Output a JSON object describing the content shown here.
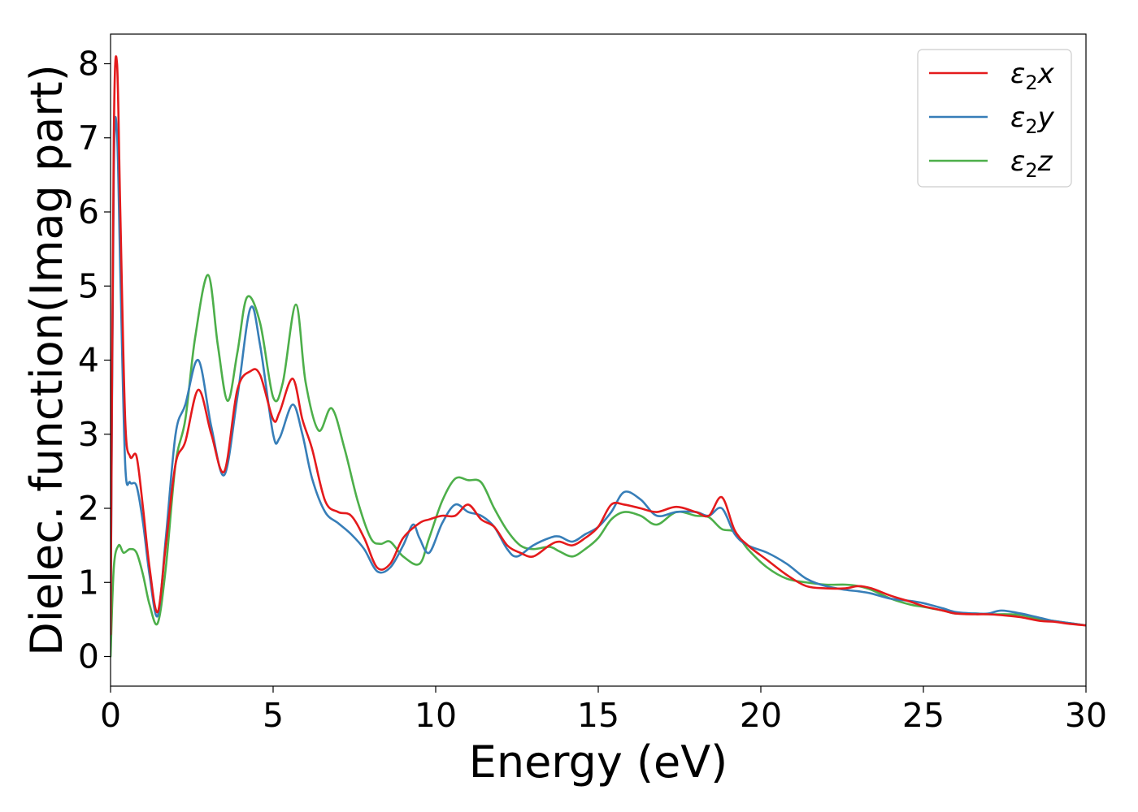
{
  "chart_data": {
    "type": "line",
    "xlabel": "Energy (eV)",
    "ylabel": "Dielec. function(Imag part)",
    "xlim": [
      0,
      30
    ],
    "ylim": [
      -0.4,
      8.4
    ],
    "xticks": [
      0,
      5,
      10,
      15,
      20,
      25,
      30
    ],
    "yticks": [
      0,
      1,
      2,
      3,
      4,
      5,
      6,
      7,
      8
    ],
    "grid": false,
    "legend_position": "top-right",
    "series": [
      {
        "name": "ε₂x",
        "legend": {
          "base": "ε",
          "sub": "2",
          "suffix": "x"
        },
        "color": "#e41a1c",
        "x": [
          0,
          0.1,
          0.2,
          0.3,
          0.45,
          0.6,
          0.8,
          1.0,
          1.2,
          1.45,
          1.7,
          2.0,
          2.3,
          2.7,
          3.1,
          3.5,
          3.9,
          4.3,
          4.6,
          5.0,
          5.2,
          5.6,
          5.9,
          6.2,
          6.6,
          7.0,
          7.4,
          7.8,
          8.2,
          8.6,
          9.0,
          9.5,
          9.8,
          10.2,
          10.6,
          11.0,
          11.4,
          11.8,
          12.2,
          12.6,
          13.0,
          13.5,
          13.8,
          14.2,
          14.6,
          15.0,
          15.4,
          15.8,
          16.3,
          16.8,
          17.4,
          18.0,
          18.4,
          18.8,
          19.2,
          19.6,
          20.2,
          20.8,
          21.4,
          22.0,
          22.6,
          23.0,
          23.4,
          24.0,
          24.6,
          25.0,
          25.6,
          26.0,
          26.6,
          27.0,
          27.6,
          28.0,
          28.6,
          29.0,
          29.5,
          30.0
        ],
        "y": [
          0.3,
          7.0,
          8.0,
          6.0,
          3.2,
          2.7,
          2.7,
          2.0,
          1.2,
          0.6,
          1.5,
          2.6,
          2.9,
          3.6,
          3.0,
          2.5,
          3.6,
          3.85,
          3.8,
          3.2,
          3.3,
          3.75,
          3.2,
          2.8,
          2.1,
          1.95,
          1.9,
          1.6,
          1.2,
          1.25,
          1.6,
          1.8,
          1.85,
          1.9,
          1.9,
          2.05,
          1.85,
          1.75,
          1.5,
          1.4,
          1.35,
          1.5,
          1.55,
          1.5,
          1.6,
          1.75,
          2.05,
          2.05,
          2.0,
          1.95,
          2.02,
          1.95,
          1.9,
          2.15,
          1.7,
          1.5,
          1.3,
          1.1,
          0.95,
          0.92,
          0.92,
          0.95,
          0.92,
          0.82,
          0.74,
          0.68,
          0.62,
          0.58,
          0.57,
          0.57,
          0.55,
          0.53,
          0.48,
          0.47,
          0.44,
          0.42
        ]
      },
      {
        "name": "ε₂y",
        "legend": {
          "base": "ε",
          "sub": "2",
          "suffix": "y"
        },
        "color": "#377eb8",
        "x": [
          0,
          0.1,
          0.2,
          0.3,
          0.45,
          0.6,
          0.8,
          1.0,
          1.2,
          1.45,
          1.7,
          2.0,
          2.3,
          2.7,
          3.1,
          3.5,
          3.9,
          4.3,
          4.6,
          5.0,
          5.2,
          5.6,
          5.9,
          6.2,
          6.6,
          7.0,
          7.4,
          7.8,
          8.2,
          8.6,
          9.0,
          9.3,
          9.5,
          9.8,
          10.2,
          10.6,
          11.0,
          11.4,
          11.8,
          12.2,
          12.5,
          13.0,
          13.5,
          13.8,
          14.2,
          14.6,
          15.0,
          15.4,
          15.8,
          16.3,
          16.8,
          17.4,
          18.0,
          18.4,
          18.8,
          19.2,
          19.6,
          20.2,
          20.8,
          21.4,
          22.0,
          22.6,
          23.0,
          23.4,
          24.0,
          24.6,
          25.0,
          25.6,
          26.0,
          26.6,
          27.0,
          27.4,
          28.0,
          28.6,
          29.0,
          29.5,
          30.0
        ],
        "y": [
          0.3,
          6.5,
          7.05,
          5.2,
          2.6,
          2.35,
          2.3,
          1.8,
          1.1,
          0.55,
          1.6,
          3.0,
          3.4,
          4.0,
          3.1,
          2.45,
          3.5,
          4.7,
          4.2,
          3.0,
          2.95,
          3.4,
          3.0,
          2.4,
          1.95,
          1.8,
          1.65,
          1.45,
          1.15,
          1.2,
          1.5,
          1.78,
          1.6,
          1.4,
          1.8,
          2.05,
          1.95,
          1.9,
          1.75,
          1.45,
          1.35,
          1.5,
          1.6,
          1.62,
          1.55,
          1.65,
          1.75,
          1.95,
          2.22,
          2.12,
          1.9,
          1.95,
          1.95,
          1.9,
          2.0,
          1.65,
          1.5,
          1.4,
          1.25,
          1.05,
          0.95,
          0.9,
          0.88,
          0.85,
          0.78,
          0.75,
          0.72,
          0.65,
          0.6,
          0.58,
          0.58,
          0.62,
          0.58,
          0.52,
          0.48,
          0.45,
          0.42
        ]
      },
      {
        "name": "ε₂z",
        "legend": {
          "base": "ε",
          "sub": "2",
          "suffix": "z"
        },
        "color": "#4daf4a",
        "x": [
          0,
          0.1,
          0.25,
          0.4,
          0.6,
          0.8,
          1.0,
          1.2,
          1.45,
          1.7,
          2.0,
          2.3,
          2.6,
          3.0,
          3.3,
          3.6,
          3.9,
          4.2,
          4.6,
          5.0,
          5.3,
          5.7,
          6.0,
          6.4,
          6.8,
          7.2,
          7.6,
          8.0,
          8.3,
          8.6,
          9.0,
          9.5,
          9.8,
          10.2,
          10.6,
          11.0,
          11.4,
          11.8,
          12.2,
          12.6,
          13.0,
          13.5,
          13.8,
          14.2,
          14.6,
          15.0,
          15.4,
          15.8,
          16.3,
          16.8,
          17.4,
          18.0,
          18.4,
          18.8,
          19.2,
          19.6,
          20.2,
          20.8,
          21.4,
          22.0,
          22.6,
          23.0,
          23.4,
          24.0,
          24.6,
          25.0,
          25.6,
          26.0,
          26.6,
          27.0,
          27.6,
          28.0,
          28.6,
          29.0,
          29.5,
          30.0
        ],
        "y": [
          0.0,
          1.2,
          1.5,
          1.4,
          1.45,
          1.4,
          1.1,
          0.7,
          0.45,
          1.2,
          2.6,
          3.2,
          4.3,
          5.15,
          4.2,
          3.45,
          4.1,
          4.85,
          4.5,
          3.5,
          3.7,
          4.75,
          3.7,
          3.05,
          3.35,
          2.8,
          2.1,
          1.6,
          1.52,
          1.55,
          1.35,
          1.25,
          1.6,
          2.1,
          2.4,
          2.38,
          2.35,
          2.0,
          1.7,
          1.5,
          1.45,
          1.48,
          1.42,
          1.35,
          1.45,
          1.6,
          1.85,
          1.95,
          1.9,
          1.78,
          1.95,
          1.9,
          1.88,
          1.72,
          1.68,
          1.45,
          1.2,
          1.05,
          1.0,
          0.97,
          0.97,
          0.95,
          0.9,
          0.78,
          0.7,
          0.67,
          0.62,
          0.58,
          0.58,
          0.57,
          0.57,
          0.56,
          0.5,
          0.48,
          0.45,
          0.42
        ]
      }
    ]
  }
}
